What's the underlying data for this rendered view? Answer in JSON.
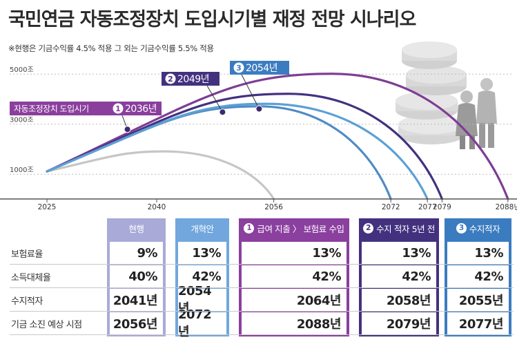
{
  "title": "국민연금 자동조정장치 도입시기별 재정 전망 시나리오",
  "subtitle": "※현행은 기금수익률 4.5% 적용 그 외는 기금수익률 5.5% 적용",
  "chart_data": {
    "type": "line",
    "y_ticks": [
      {
        "value": 5000,
        "label": "5000조"
      },
      {
        "value": 3000,
        "label": "3000조"
      },
      {
        "value": 1000,
        "label": "1000조"
      }
    ],
    "x_ticks": [
      2025,
      2040,
      2056,
      2072,
      2077,
      2079,
      2088
    ],
    "x_tick_labels": [
      "2025",
      "2040",
      "2056",
      "2072",
      "2077",
      "2079",
      "2088년"
    ],
    "xlim": [
      2025,
      2090
    ],
    "ylim": [
      0,
      5600
    ],
    "start_value": 1100,
    "series": [
      {
        "color": "#c6c6c6",
        "start": 2025,
        "peak_year": 2041,
        "peak_value": 1900,
        "end": 2056
      },
      {
        "color": "#4f8bc5",
        "start": 2025,
        "peak_year": 2054,
        "peak_value": 3700,
        "end": 2072
      },
      {
        "color": "#7e3d94",
        "start": 2025,
        "peak_year": 2064,
        "peak_value": 5000,
        "end": 2088
      },
      {
        "color": "#43317f",
        "start": 2025,
        "peak_year": 2058,
        "peak_value": 4200,
        "end": 2079
      },
      {
        "color": "#5ca0d6",
        "start": 2025,
        "peak_year": 2055,
        "peak_value": 3800,
        "end": 2077
      }
    ],
    "callouts": [
      {
        "num": "1",
        "label": "자동조정장치 도입시기",
        "year": "2036년",
        "color": "#8a3f9d",
        "at_year": 2036,
        "at_value": 2780
      },
      {
        "num": "2",
        "label": "",
        "year": "2049년",
        "color": "#43317f",
        "at_year": 2049,
        "at_value": 3470
      },
      {
        "num": "3",
        "label": "",
        "year": "2054년",
        "color": "#3b7cc0",
        "at_year": 2054,
        "at_value": 3600
      }
    ]
  },
  "table": {
    "row_labels": [
      "보험료율",
      "소득대체율",
      "수지적자",
      "기금 소진 예상 시점"
    ],
    "columns": [
      {
        "num": "",
        "header": "현행",
        "color": "#a9aad8",
        "values": [
          "9%",
          "40%",
          "2041년",
          "2056년"
        ]
      },
      {
        "num": "",
        "header": "개혁안",
        "color": "#71a7dd",
        "values": [
          "13%",
          "42%",
          "2054년",
          "2072년"
        ]
      },
      {
        "num": "1",
        "header": "급여 지출 〉 보험료 수입",
        "color": "#8b3f9f",
        "values": [
          "13%",
          "42%",
          "2064년",
          "2088년"
        ]
      },
      {
        "num": "2",
        "header": "수지 적자 5년 전",
        "color": "#43317f",
        "values": [
          "13%",
          "42%",
          "2058년",
          "2079년"
        ]
      },
      {
        "num": "3",
        "header": "수지적자",
        "color": "#3b7cc0",
        "values": [
          "13%",
          "42%",
          "2055년",
          "2077년"
        ]
      }
    ]
  }
}
